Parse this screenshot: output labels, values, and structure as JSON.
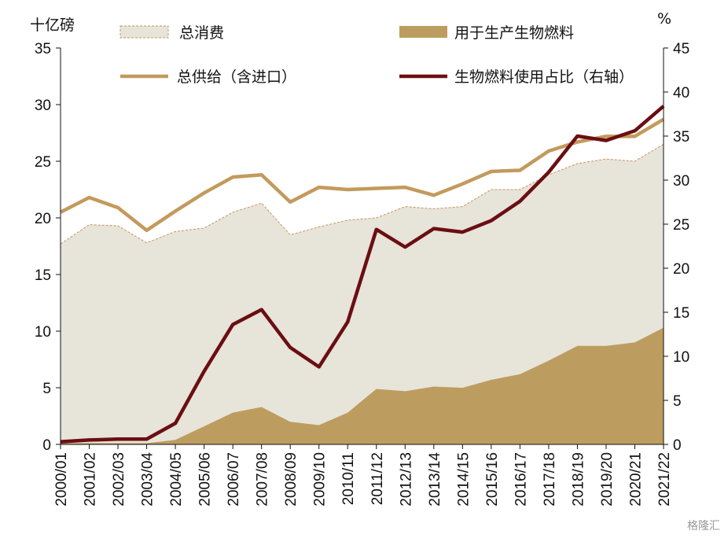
{
  "colors": {
    "consumption_fill": "#e7e4da",
    "consumption_stroke": "#c9935a",
    "biofuel_fill": "#bd9d5f",
    "supply_line": "#c39a5d",
    "share_line": "#6b0e12",
    "axis": "#111111"
  },
  "watermark": "格隆汇",
  "chart_data": {
    "type": "area",
    "y_left_label": "十亿磅",
    "y_right_label": "%",
    "ylim_left": [
      0,
      35
    ],
    "ylim_right": [
      0,
      45
    ],
    "y_left_ticks": [
      0,
      5,
      10,
      15,
      20,
      25,
      30,
      35
    ],
    "y_right_ticks": [
      0,
      5,
      10,
      15,
      20,
      25,
      30,
      35,
      40,
      45
    ],
    "grid": false,
    "legend_position": "top",
    "categories": [
      "2000/01",
      "2001/02",
      "2002/03",
      "2003/04",
      "2004/05",
      "2005/06",
      "2006/07",
      "2007/08",
      "2008/09",
      "2009/10",
      "2010/11",
      "2011/12",
      "2012/13",
      "2013/14",
      "2014/15",
      "2015/16",
      "2016/17",
      "2017/18",
      "2018/19",
      "2019/20",
      "2020/21",
      "2021/22"
    ],
    "series": [
      {
        "name": "总消费",
        "type": "area",
        "axis": "left",
        "values": [
          17.7,
          19.4,
          19.3,
          17.8,
          18.8,
          19.1,
          20.5,
          21.3,
          18.5,
          19.2,
          19.8,
          20.0,
          21.0,
          20.8,
          21.0,
          22.5,
          22.5,
          23.8,
          24.8,
          25.2,
          25.0,
          26.5
        ]
      },
      {
        "name": "用于生产生物燃料",
        "type": "area",
        "axis": "left",
        "values": [
          0.1,
          0.1,
          0.1,
          0.1,
          0.4,
          1.6,
          2.8,
          3.3,
          2.0,
          1.7,
          2.8,
          4.9,
          4.7,
          5.1,
          5.0,
          5.7,
          6.2,
          7.4,
          8.7,
          8.7,
          9.0,
          10.3
        ]
      },
      {
        "name": "总供给（含进口）",
        "type": "line",
        "axis": "left",
        "values": [
          20.5,
          21.8,
          20.9,
          18.9,
          20.6,
          22.2,
          23.6,
          23.8,
          21.4,
          22.7,
          22.5,
          22.6,
          22.7,
          22.0,
          23.0,
          24.1,
          24.2,
          25.9,
          26.7,
          27.2,
          27.2,
          28.7
        ]
      },
      {
        "name": "生物燃料使用占比（右轴）",
        "type": "line",
        "axis": "right",
        "values": [
          0.3,
          0.5,
          0.6,
          0.6,
          2.4,
          8.3,
          13.6,
          15.3,
          11.0,
          8.8,
          13.9,
          24.4,
          22.4,
          24.5,
          24.1,
          25.4,
          27.6,
          30.9,
          35.0,
          34.5,
          35.6,
          38.4
        ]
      }
    ]
  }
}
